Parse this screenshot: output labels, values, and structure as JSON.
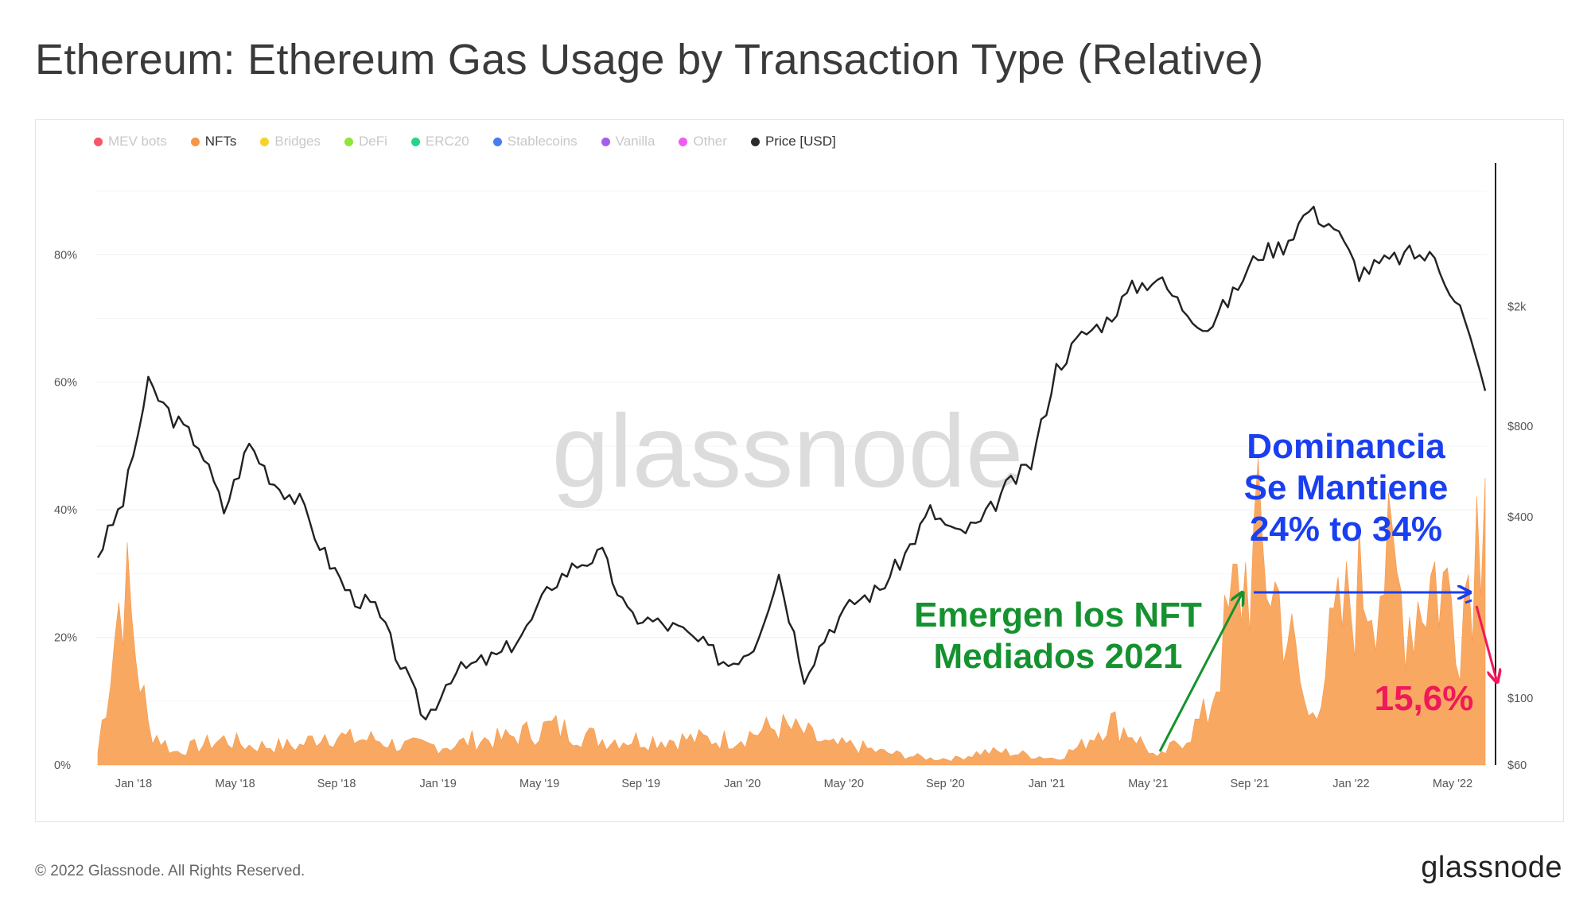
{
  "title": "Ethereum: Ethereum Gas Usage by Transaction Type (Relative)",
  "legend": [
    {
      "label": "MEV bots",
      "color": "#f7556a",
      "active": false
    },
    {
      "label": "NFTs",
      "color": "#f79646",
      "active": true
    },
    {
      "label": "Bridges",
      "color": "#f5d32a",
      "active": false
    },
    {
      "label": "DeFi",
      "color": "#8ee63a",
      "active": false
    },
    {
      "label": "ERC20",
      "color": "#24d48a",
      "active": false
    },
    {
      "label": "Stablecoins",
      "color": "#4a7cf0",
      "active": false
    },
    {
      "label": "Vanilla",
      "color": "#a55cf0",
      "active": false
    },
    {
      "label": "Other",
      "color": "#f05cf0",
      "active": false
    },
    {
      "label": "Price [USD]",
      "color": "#2b2b2b",
      "active": true
    }
  ],
  "watermark": "glassnode",
  "footer": "© 2022 Glassnode. All Rights Reserved.",
  "logo": "glassnode",
  "colors": {
    "nft_fill": "#f9a862",
    "price_line": "#222222",
    "green_ann": "#15922f",
    "blue_ann": "#1a3ff0",
    "red_ann": "#f0195a"
  },
  "chart_data": {
    "type": "area",
    "x_ticks": [
      "Jan '18",
      "May '18",
      "Sep '18",
      "Jan '19",
      "May '19",
      "Sep '19",
      "Jan '20",
      "May '20",
      "Sep '20",
      "Jan '21",
      "May '21",
      "Sep '21",
      "Jan '22",
      "May '22"
    ],
    "y_left_ticks": [
      "0%",
      "20%",
      "40%",
      "60%",
      "80%"
    ],
    "y_left_range": [
      0,
      1
    ],
    "y_right_ticks": [
      "$60",
      "$100",
      "$400",
      "$800",
      "$2k"
    ],
    "y_right_scale": "log",
    "series": [
      {
        "name": "NFTs",
        "axis": "left",
        "x": [
          "Nov '17",
          "Dec '17",
          "Jan '18",
          "Feb '18",
          "Mar '18",
          "Apr '18",
          "May '18",
          "Jun '18",
          "Jul '18",
          "Aug '18",
          "Sep '18",
          "Oct '18",
          "Nov '18",
          "Dec '18",
          "Jan '19",
          "Feb '19",
          "Mar '19",
          "Apr '19",
          "May '19",
          "Jun '19",
          "Jul '19",
          "Aug '19",
          "Sep '19",
          "Oct '19",
          "Nov '19",
          "Dec '19",
          "Jan '20",
          "Feb '20",
          "Mar '20",
          "Apr '20",
          "May '20",
          "Jun '20",
          "Jul '20",
          "Aug '20",
          "Sep '20",
          "Oct '20",
          "Nov '20",
          "Dec '20",
          "Jan '21",
          "Feb '21",
          "Mar '21",
          "Apr '21",
          "May '21",
          "Jun '21",
          "Jul '21",
          "Aug '21",
          "Sep '21",
          "Oct '21",
          "Nov '21",
          "Dec '21",
          "Jan '22",
          "Feb '22",
          "Mar '22",
          "Apr '22",
          "May '22",
          "Jun '22"
        ],
        "values": [
          0.02,
          0.3,
          0.06,
          0.02,
          0.03,
          0.04,
          0.03,
          0.03,
          0.03,
          0.05,
          0.04,
          0.04,
          0.03,
          0.03,
          0.03,
          0.04,
          0.04,
          0.05,
          0.06,
          0.05,
          0.04,
          0.04,
          0.04,
          0.04,
          0.04,
          0.04,
          0.05,
          0.06,
          0.05,
          0.03,
          0.03,
          0.02,
          0.015,
          0.01,
          0.01,
          0.02,
          0.02,
          0.015,
          0.01,
          0.03,
          0.07,
          0.05,
          0.01,
          0.04,
          0.08,
          0.25,
          0.34,
          0.24,
          0.07,
          0.2,
          0.28,
          0.31,
          0.24,
          0.3,
          0.24,
          0.45
        ]
      },
      {
        "name": "Price [USD]",
        "axis": "right",
        "x": [
          "Nov '17",
          "Dec '17",
          "Jan '18",
          "Feb '18",
          "Mar '18",
          "Apr '18",
          "May '18",
          "Jun '18",
          "Jul '18",
          "Aug '18",
          "Sep '18",
          "Oct '18",
          "Nov '18",
          "Dec '18",
          "Jan '19",
          "Feb '19",
          "Mar '19",
          "Apr '19",
          "May '19",
          "Jun '19",
          "Jul '19",
          "Aug '19",
          "Sep '19",
          "Oct '19",
          "Nov '19",
          "Dec '19",
          "Jan '20",
          "Feb '20",
          "Mar '20",
          "Apr '20",
          "May '20",
          "Jun '20",
          "Jul '20",
          "Aug '20",
          "Sep '20",
          "Oct '20",
          "Nov '20",
          "Dec '20",
          "Jan '21",
          "Feb '21",
          "Mar '21",
          "Apr '21",
          "May '21",
          "Jun '21",
          "Jul '21",
          "Aug '21",
          "Sep '21",
          "Oct '21",
          "Nov '21",
          "Dec '21",
          "Jan '22",
          "Feb '22",
          "Mar '22",
          "Apr '22",
          "May '22",
          "Jun '22"
        ],
        "values": [
          300,
          450,
          1100,
          850,
          700,
          420,
          700,
          520,
          450,
          300,
          220,
          200,
          130,
          85,
          120,
          130,
          140,
          170,
          240,
          280,
          300,
          190,
          180,
          170,
          150,
          130,
          150,
          260,
          120,
          170,
          210,
          230,
          300,
          420,
          350,
          380,
          500,
          600,
          1250,
          1600,
          1800,
          2300,
          2500,
          2000,
          1700,
          2200,
          3000,
          3200,
          4200,
          3700,
          2600,
          2800,
          3000,
          2900,
          2000,
          1050
        ]
      }
    ],
    "annotations": [
      {
        "text": "Emergen los NFT",
        "color": "green"
      },
      {
        "text": "Mediados 2021",
        "color": "green"
      },
      {
        "text": "Dominancia",
        "color": "blue"
      },
      {
        "text": "Se Mantiene",
        "color": "blue"
      },
      {
        "text": "24% to 34%",
        "color": "blue"
      },
      {
        "text": "15,6%",
        "color": "red"
      }
    ]
  }
}
